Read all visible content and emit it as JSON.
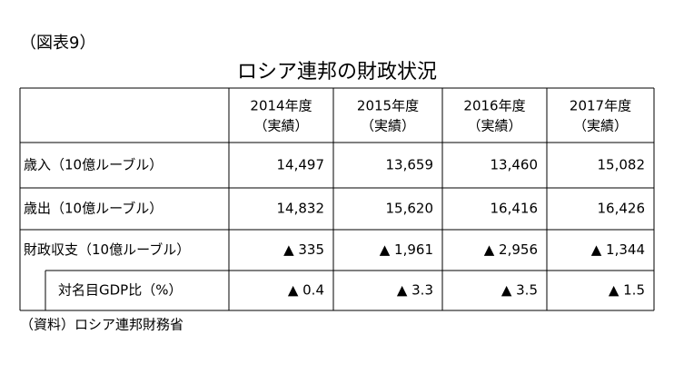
{
  "header": {
    "label": "（図表9）",
    "title": "ロシア連邦の財政状況"
  },
  "table": {
    "columns": [
      {
        "year": "2014年度",
        "note": "（実績）"
      },
      {
        "year": "2015年度",
        "note": "（実績）"
      },
      {
        "year": "2016年度",
        "note": "（実績）"
      },
      {
        "year": "2017年度",
        "note": "（実績）"
      }
    ],
    "rows": [
      {
        "label": "歳入（10億ルーブル）",
        "values": [
          "14,497",
          "13,659",
          "13,460",
          "15,082"
        ]
      },
      {
        "label": "歳出（10億ルーブル）",
        "values": [
          "14,832",
          "15,620",
          "16,416",
          "16,426"
        ]
      },
      {
        "label": "財政収支（10億ルーブル）",
        "values": [
          "▲ 335",
          "▲ 1,961",
          "▲ 2,956",
          "▲ 1,344"
        ]
      },
      {
        "label": "対名目GDP比（%）",
        "values": [
          "▲ 0.4",
          "▲ 3.3",
          "▲ 3.5",
          "▲ 1.5"
        ]
      }
    ]
  },
  "footer": {
    "source": "（資料）ロシア連邦財務省"
  }
}
